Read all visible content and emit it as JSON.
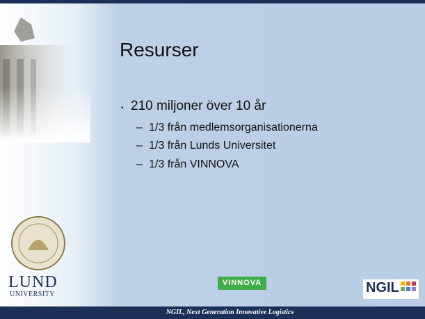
{
  "slide": {
    "title": "Resurser",
    "bullets": [
      {
        "text": "210 miljoner över 10 år",
        "sub": [
          "1/3 från medlemsorganisationerna",
          "1/3 från Lunds Universitet",
          "1/3 från VINNOVA"
        ]
      }
    ]
  },
  "logos": {
    "lund": {
      "name": "LUND",
      "sub": "UNIVERSITY"
    },
    "vinnova": "VINNOVA",
    "ngil": "NGIL"
  },
  "footer": "NGIL, Next Generation Innovative Logistics"
}
